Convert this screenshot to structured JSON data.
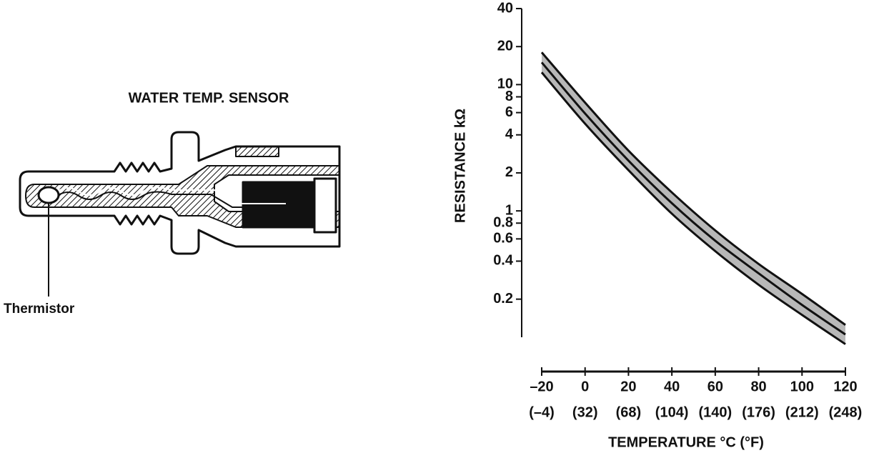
{
  "diagram": {
    "title": "WATER TEMP. SENSOR",
    "callout": "Thermistor"
  },
  "chart_data": {
    "type": "line",
    "ylabel": "RESISTANCE kΩ",
    "xlabel": "TEMPERATURE °C (°F)",
    "x": [
      -20,
      0,
      20,
      40,
      60,
      80,
      100,
      120
    ],
    "series": [
      {
        "color": "#111111",
        "values": [
          18,
          7.2,
          3.0,
          1.4,
          0.7,
          0.38,
          0.22,
          0.125
        ]
      },
      {
        "color": "#111111",
        "values": [
          15,
          5.9,
          2.5,
          1.15,
          0.58,
          0.32,
          0.18,
          0.105
        ]
      },
      {
        "color": "#111111",
        "values": [
          12.5,
          4.9,
          2.1,
          0.95,
          0.48,
          0.26,
          0.15,
          0.088
        ]
      }
    ],
    "band_color": "#b8b8b8",
    "log_y": true,
    "xlim": [
      -20,
      120
    ],
    "ylim": [
      0.08,
      40
    ],
    "xticks": [
      {
        "value": -20,
        "label": "–20"
      },
      0,
      20,
      40,
      60,
      80,
      100,
      120
    ],
    "xtick_sublabels": [
      "(–4)",
      "(32)",
      "(68)",
      "(104)",
      "(140)",
      "(176)",
      "(212)",
      "(248)"
    ],
    "yticks": [
      40,
      20,
      10,
      8,
      6,
      4,
      2,
      1,
      0.8,
      0.6,
      0.4,
      0.2
    ]
  }
}
